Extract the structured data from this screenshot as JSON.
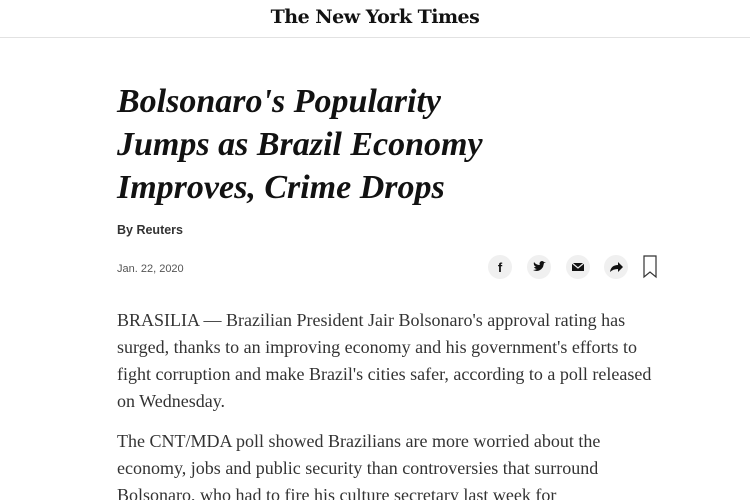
{
  "header": {
    "logo": "The New York Times"
  },
  "article": {
    "headline": "Bolsonaro's Popularity Jumps as Brazil Economy Improves, Crime Drops",
    "byline": "By Reuters",
    "date": "Jan. 22, 2020",
    "paragraphs": [
      "BRASILIA — Brazilian President Jair Bolsonaro's approval rating has surged, thanks to an improving economy and his government's efforts to fight corruption and make Brazil's cities safer, according to a poll released on Wednesday.",
      "The CNT/MDA poll showed Brazilians are more worried about the economy, jobs and public security than controversies that surround Bolsonaro, who had to fire his culture secretary last week for"
    ]
  }
}
